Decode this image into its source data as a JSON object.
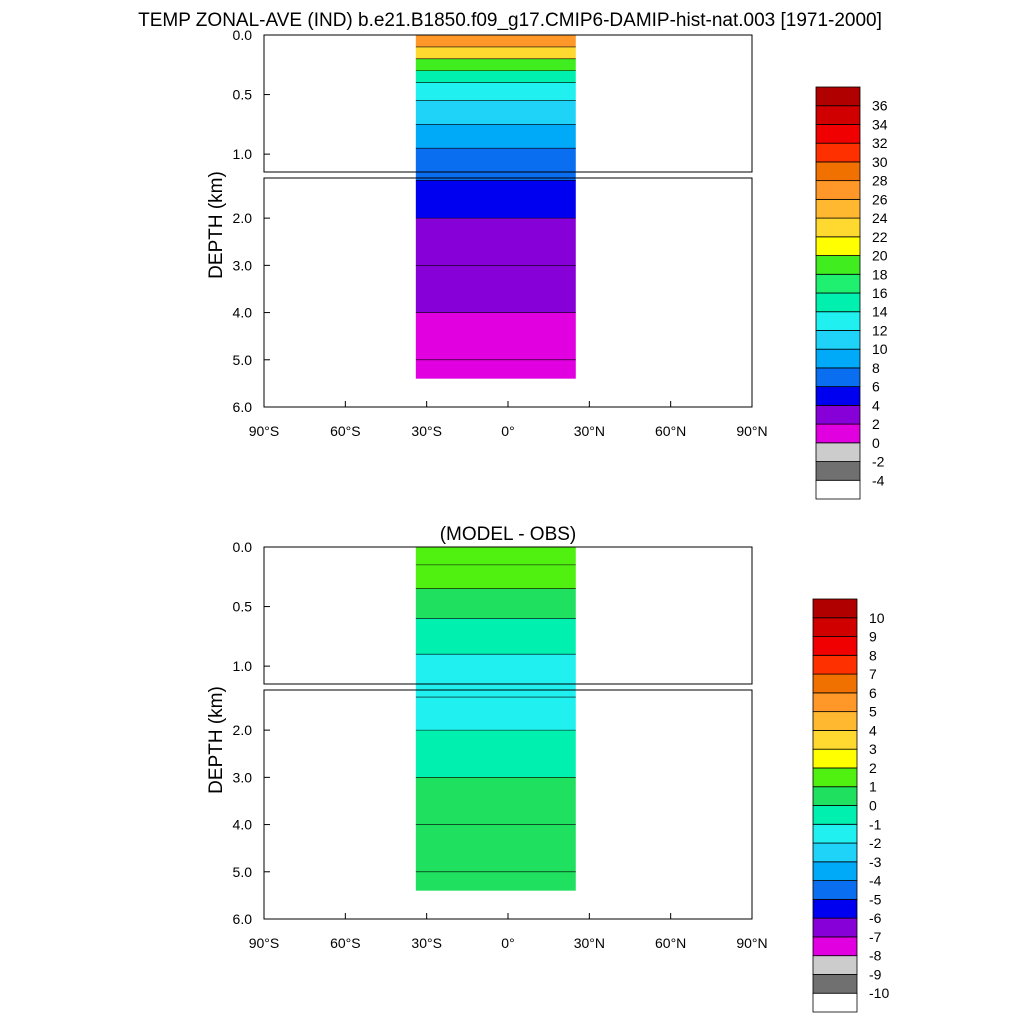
{
  "title": "TEMP ZONAL-AVE (IND) b.e21.B1850.f09_g17.CMIP6-DAMIP-hist-nat.003 [1971-2000]",
  "chart_data": [
    {
      "type": "heatmap",
      "panel": "top",
      "title": "",
      "ylabel": "DEPTH (km)",
      "x_ticks": [
        "90°S",
        "60°S",
        "30°S",
        "0°",
        "30°N",
        "60°N",
        "90°N"
      ],
      "x_range": [
        -90,
        90
      ],
      "y_ticks_upper": [
        "0.0",
        "0.5",
        "1.0"
      ],
      "y_ticks_lower": [
        "2.0",
        "3.0",
        "4.0",
        "5.0",
        "6.0"
      ],
      "y_range": [
        0,
        6
      ],
      "y_break_km": 1.15,
      "data_lat_range": [
        -34,
        25
      ],
      "max_depth_km": 5.4,
      "colorbar_labels": [
        "-4",
        "-2",
        "0",
        "2",
        "4",
        "6",
        "8",
        "10",
        "12",
        "14",
        "16",
        "18",
        "20",
        "22",
        "24",
        "26",
        "28",
        "30",
        "32",
        "34",
        "36"
      ],
      "colorbar_colors": [
        "#ffffff",
        "#707070",
        "#cccccc",
        "#e000e0",
        "#8800d8",
        "#0000f0",
        "#0a6ef0",
        "#00aaf8",
        "#1ed2f8",
        "#20f0f0",
        "#00f0b0",
        "#20f070",
        "#40ee20",
        "#ffff00",
        "#ffd830",
        "#ffb830",
        "#ff9828",
        "#f07000",
        "#ff3000",
        "#f00000",
        "#d00000",
        "#b00000"
      ],
      "profile": [
        {
          "depth_km": 0.0,
          "value": 27
        },
        {
          "depth_km": 0.1,
          "value": 23
        },
        {
          "depth_km": 0.2,
          "value": 18
        },
        {
          "depth_km": 0.3,
          "value": 14
        },
        {
          "depth_km": 0.4,
          "value": 12
        },
        {
          "depth_km": 0.55,
          "value": 10
        },
        {
          "depth_km": 0.75,
          "value": 8
        },
        {
          "depth_km": 0.95,
          "value": 7
        },
        {
          "depth_km": 1.2,
          "value": 5
        },
        {
          "depth_km": 2.0,
          "value": 3
        },
        {
          "depth_km": 3.0,
          "value": 2
        },
        {
          "depth_km": 4.0,
          "value": 1.5
        },
        {
          "depth_km": 5.0,
          "value": 1
        }
      ]
    },
    {
      "type": "heatmap",
      "panel": "bottom",
      "title": "(MODEL - OBS)",
      "ylabel": "DEPTH (km)",
      "x_ticks": [
        "90°S",
        "60°S",
        "30°S",
        "0°",
        "30°N",
        "60°N",
        "90°N"
      ],
      "x_range": [
        -90,
        90
      ],
      "y_ticks_upper": [
        "0.0",
        "0.5",
        "1.0"
      ],
      "y_ticks_lower": [
        "2.0",
        "3.0",
        "4.0",
        "5.0",
        "6.0"
      ],
      "y_range": [
        0,
        6
      ],
      "y_break_km": 1.15,
      "data_lat_range": [
        -34,
        25
      ],
      "max_depth_km": 5.4,
      "colorbar_labels": [
        "-10",
        "-9",
        "-8",
        "-7",
        "-6",
        "-5",
        "-4",
        "-3",
        "-2",
        "-1",
        "0",
        "1",
        "2",
        "3",
        "4",
        "5",
        "6",
        "7",
        "8",
        "9",
        "10"
      ],
      "colorbar_colors": [
        "#ffffff",
        "#707070",
        "#cccccc",
        "#e000e0",
        "#8800d8",
        "#0000f0",
        "#0a6ef0",
        "#00aaf8",
        "#1ed2f8",
        "#20f0f0",
        "#00f0b0",
        "#20e060",
        "#50f010",
        "#ffff00",
        "#ffd830",
        "#ffb830",
        "#ff9828",
        "#f07000",
        "#ff3000",
        "#f00000",
        "#d00000",
        "#b00000"
      ],
      "profile": [
        {
          "depth_km": 0.0,
          "value": 1.0
        },
        {
          "depth_km": 0.15,
          "value": 1.2
        },
        {
          "depth_km": 0.35,
          "value": 0.5
        },
        {
          "depth_km": 0.6,
          "value": -0.5
        },
        {
          "depth_km": 0.9,
          "value": -1.2
        },
        {
          "depth_km": 1.3,
          "value": -1.5
        },
        {
          "depth_km": 2.0,
          "value": -0.8
        },
        {
          "depth_km": 3.0,
          "value": 0.3
        },
        {
          "depth_km": 4.0,
          "value": 0.5
        },
        {
          "depth_km": 5.0,
          "value": 0.6
        }
      ]
    }
  ]
}
